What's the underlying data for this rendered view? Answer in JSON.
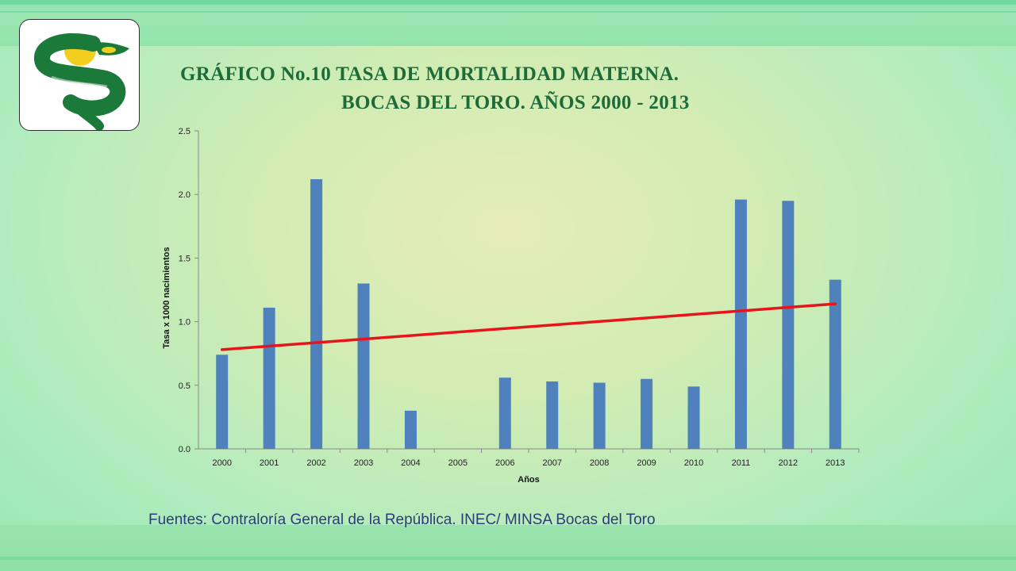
{
  "title_line1": "GRÁFICO No.10 TASA DE MORTALIDAD MATERNA.",
  "title_line2": "BOCAS DEL TORO. AÑOS 2000 - 2013",
  "source": "Fuentes:  Contraloría General de la República. INEC/ MINSA Bocas del Toro",
  "colors": {
    "bar": "#4f81bd",
    "trendline": "#e8141c",
    "title": "#1e6b3a",
    "source": "#2a3c7a",
    "logo_green": "#1b7a3a",
    "logo_yellow": "#f2cf1f"
  },
  "chart_data": {
    "type": "bar",
    "xlabel": "Años",
    "ylabel": "Tasa x 1000 nacimientos",
    "ylim": [
      0,
      2.5
    ],
    "yticks": [
      "0.0",
      "0.5",
      "1.0",
      "1.5",
      "2.0",
      "2.5"
    ],
    "categories": [
      "2000",
      "2001",
      "2002",
      "2003",
      "2004",
      "2005",
      "2006",
      "2007",
      "2008",
      "2009",
      "2010",
      "2011",
      "2012",
      "2013"
    ],
    "values": [
      0.74,
      1.11,
      2.12,
      1.3,
      0.3,
      0,
      0.56,
      0.53,
      0.52,
      0.55,
      0.49,
      1.96,
      1.95,
      1.33
    ],
    "trendline": {
      "type": "linear",
      "start": 0.78,
      "end": 1.14
    },
    "grid": false,
    "legend": "none"
  }
}
